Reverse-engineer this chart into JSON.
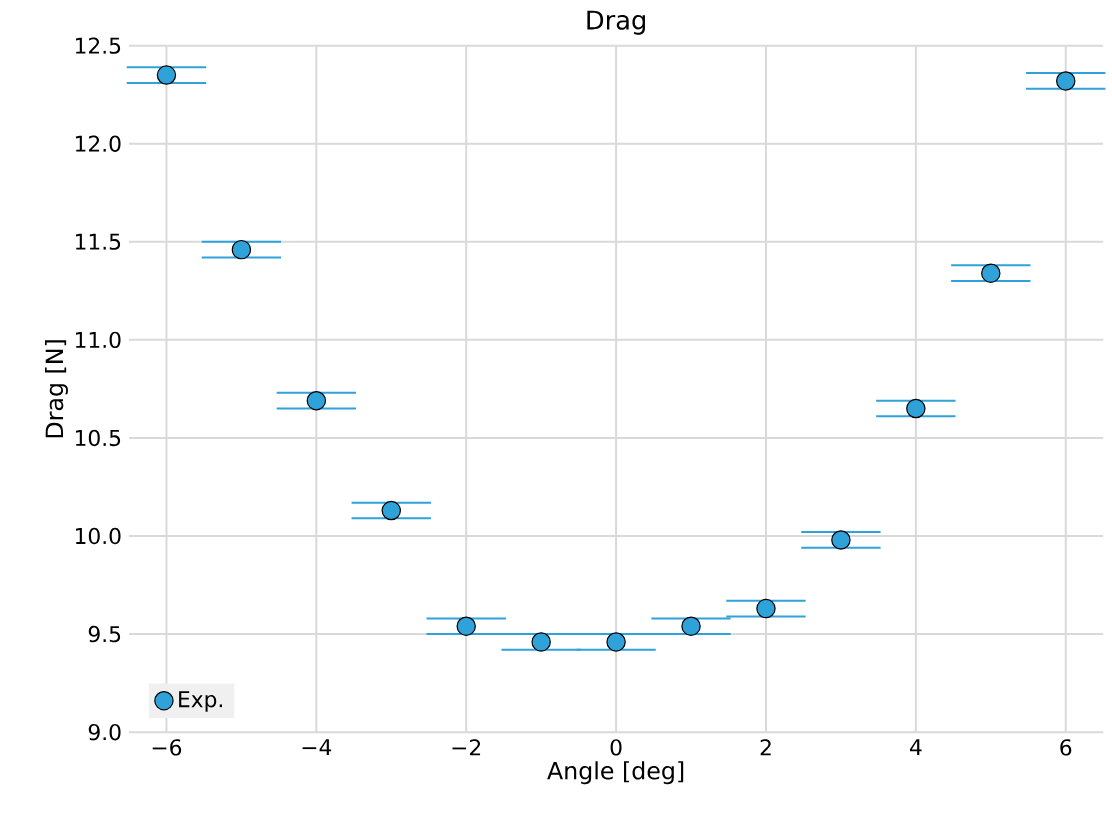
{
  "chart_data": {
    "type": "scatter",
    "title": "Drag",
    "xlabel": "Angle [deg]",
    "ylabel": "Drag [N]",
    "xlim": [
      -6.5,
      6.5
    ],
    "ylim": [
      9.0,
      12.5
    ],
    "xticks": [
      {
        "value": -6,
        "label": "−6"
      },
      {
        "value": -4,
        "label": "−4"
      },
      {
        "value": -2,
        "label": "−2"
      },
      0,
      2,
      4,
      6
    ],
    "yticks": [
      {
        "value": 9,
        "label": "9.0"
      },
      9.5,
      {
        "value": 10,
        "label": "10.0"
      },
      10.5,
      {
        "value": 11,
        "label": "11.0"
      },
      11.5,
      {
        "value": 12,
        "label": "12.0"
      },
      12.5
    ],
    "grid": true,
    "legend": "bottom left",
    "marker": "circle",
    "series": [
      {
        "name": "Exp.",
        "color": "#30a2da",
        "x": [
          -6,
          -5,
          -4,
          -3,
          -2,
          -1,
          0,
          1,
          2,
          3,
          4,
          5,
          6
        ],
        "values": [
          12.35,
          11.46,
          10.69,
          10.13,
          9.54,
          9.46,
          9.46,
          9.54,
          9.63,
          9.98,
          10.65,
          11.34,
          12.32
        ],
        "errors": [
          0.04,
          0.04,
          0.04,
          0.04,
          0.04,
          0.04,
          0.04,
          0.04,
          0.04,
          0.04,
          0.04,
          0.04,
          0.04
        ]
      }
    ]
  }
}
